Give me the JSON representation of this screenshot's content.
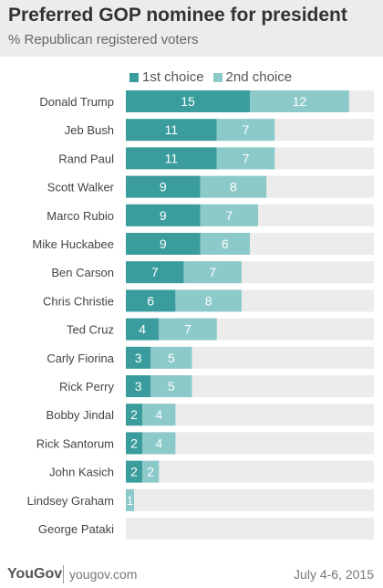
{
  "header": {
    "title": "Preferred GOP nominee for president",
    "subtitle": "% Republican registered voters"
  },
  "colors": {
    "first": "#3a9c9c",
    "second": "#8cc9c9",
    "track": "#ececec",
    "label_text": "#ffffff"
  },
  "chart_data": {
    "type": "bar",
    "orientation": "horizontal",
    "stacked": true,
    "categories": [
      "Donald Trump",
      "Jeb Bush",
      "Rand Paul",
      "Scott Walker",
      "Marco Rubio",
      "Mike Huckabee",
      "Ben Carson",
      "Chris Christie",
      "Ted Cruz",
      "Carly Fiorina",
      "Rick Perry",
      "Bobby Jindal",
      "Rick Santorum",
      "John Kasich",
      "Lindsey Graham",
      "George Pataki"
    ],
    "series": [
      {
        "name": "1st choice",
        "values": [
          15,
          11,
          11,
          9,
          9,
          9,
          7,
          6,
          4,
          3,
          3,
          2,
          2,
          2,
          0,
          0
        ]
      },
      {
        "name": "2nd choice",
        "values": [
          12,
          7,
          7,
          8,
          7,
          6,
          7,
          8,
          7,
          5,
          5,
          4,
          4,
          2,
          1,
          0
        ]
      }
    ],
    "data_labels": {
      "1st choice": [
        "15",
        "11",
        "11",
        "9",
        "9",
        "9",
        "7",
        "6",
        "4",
        "3",
        "3",
        "2",
        "2",
        "2",
        "",
        ""
      ],
      "2nd choice": [
        "12",
        "7",
        "7",
        "8",
        "7",
        "6",
        "7",
        "8",
        "7",
        "5",
        "5",
        "4",
        "4",
        "2",
        "1",
        ""
      ]
    },
    "xlim": [
      0,
      30
    ],
    "legend": "top",
    "grid": false
  },
  "footer": {
    "brand": "YouGov",
    "site": "yougov.com",
    "date": "July 4-6, 2015"
  }
}
